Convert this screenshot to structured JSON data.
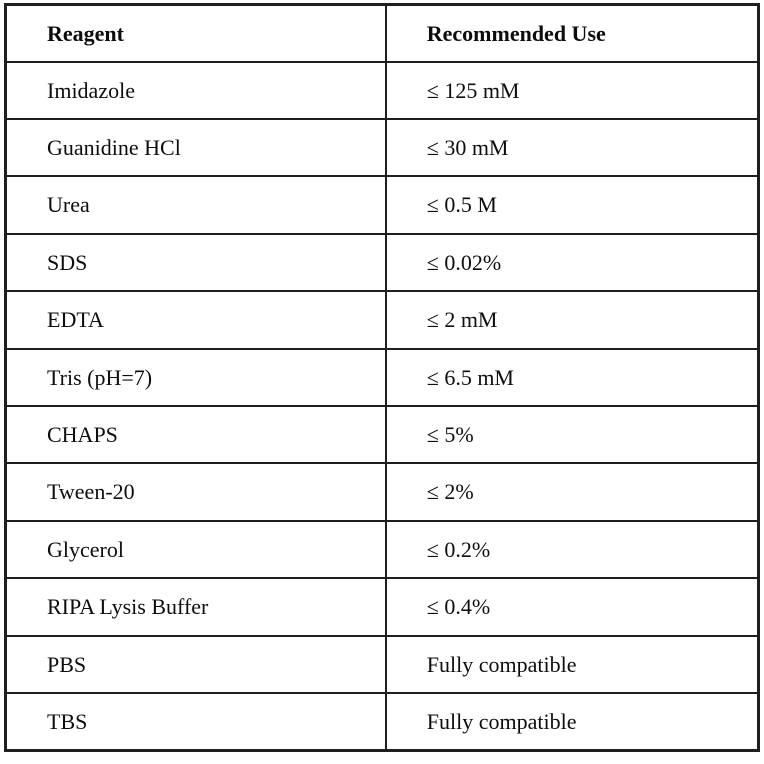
{
  "table": {
    "headers": {
      "reagent": "Reagent",
      "use": "Recommended Use"
    },
    "rows": [
      {
        "reagent": "Imidazole",
        "use": "≤ 125 mM"
      },
      {
        "reagent": "Guanidine HCl",
        "use": "≤ 30 mM"
      },
      {
        "reagent": "Urea",
        "use": "≤ 0.5 M"
      },
      {
        "reagent": "SDS",
        "use": "≤ 0.02%"
      },
      {
        "reagent": "EDTA",
        "use": "≤ 2 mM"
      },
      {
        "reagent": "Tris (pH=7)",
        "use": "≤ 6.5 mM"
      },
      {
        "reagent": "CHAPS",
        "use": "≤ 5%"
      },
      {
        "reagent": "Tween-20",
        "use": "≤ 2%"
      },
      {
        "reagent": "Glycerol",
        "use": "≤ 0.2%"
      },
      {
        "reagent": "RIPA Lysis Buffer",
        "use": "≤ 0.4%"
      },
      {
        "reagent": "PBS",
        "use": "Fully compatible"
      },
      {
        "reagent": "TBS",
        "use": "Fully compatible"
      }
    ],
    "colors": {
      "border": "#1f1f1f",
      "text": "#0d0d0d",
      "background": "#ffffff"
    }
  }
}
